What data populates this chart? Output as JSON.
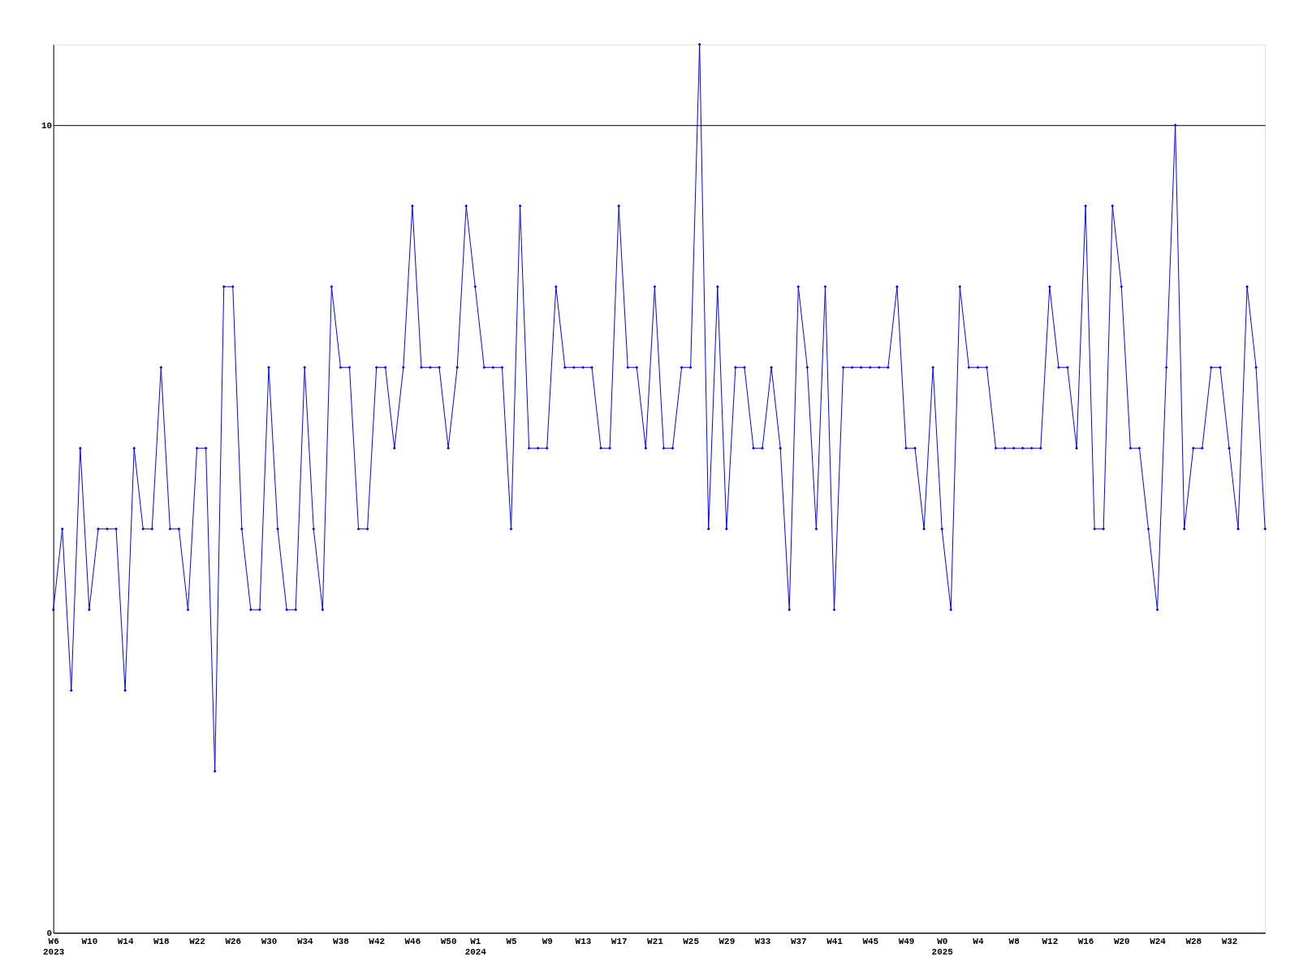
{
  "chart_data": {
    "type": "line",
    "categories": [
      "W6\n2023",
      null,
      null,
      null,
      "W10",
      null,
      null,
      null,
      "W14",
      null,
      null,
      null,
      "W18",
      null,
      null,
      null,
      "W22",
      null,
      null,
      null,
      "W26",
      null,
      null,
      null,
      "W30",
      null,
      null,
      null,
      "W34",
      null,
      null,
      null,
      "W38",
      null,
      null,
      null,
      "W42",
      null,
      null,
      null,
      "W46",
      null,
      null,
      null,
      "W50",
      null,
      null,
      "W1\n2024",
      null,
      null,
      null,
      "W5",
      null,
      null,
      null,
      "W9",
      null,
      null,
      null,
      "W13",
      null,
      null,
      null,
      "W17",
      null,
      null,
      null,
      "W21",
      null,
      null,
      null,
      "W25",
      null,
      null,
      null,
      "W29",
      null,
      null,
      null,
      "W33",
      null,
      null,
      null,
      "W37",
      null,
      null,
      null,
      "W41",
      null,
      null,
      null,
      "W45",
      null,
      null,
      null,
      "W49",
      null,
      null,
      null,
      "W0\n2025",
      null,
      null,
      null,
      "W4",
      null,
      null,
      null,
      "W8",
      null,
      null,
      null,
      "W12",
      null,
      null,
      null,
      "W16",
      null,
      null,
      null,
      "W20",
      null,
      null,
      null,
      "W24",
      null,
      null,
      null,
      "W28",
      null,
      null,
      null,
      "W32",
      null,
      null,
      null,
      null
    ],
    "series": [
      {
        "color": "#0000ff",
        "values": [
          4,
          5,
          3,
          6,
          4,
          5,
          5,
          5,
          3,
          6,
          5,
          5,
          7,
          5,
          5,
          4,
          6,
          6,
          2,
          8,
          8,
          5,
          4,
          4,
          7,
          5,
          4,
          4,
          7,
          5,
          4,
          8,
          7,
          7,
          5,
          5,
          7,
          7,
          6,
          7,
          9,
          7,
          7,
          7,
          6,
          7,
          9,
          8,
          7,
          7,
          7,
          5,
          9,
          6,
          6,
          6,
          8,
          7,
          7,
          7,
          7,
          6,
          6,
          9,
          7,
          7,
          6,
          8,
          6,
          6,
          7,
          7,
          11,
          5,
          8,
          5,
          7,
          7,
          6,
          6,
          7,
          6,
          4,
          8,
          7,
          5,
          8,
          4,
          7,
          7,
          7,
          7,
          7,
          7,
          8,
          6,
          6,
          5,
          7,
          5,
          4,
          8,
          7,
          7,
          7,
          6,
          6,
          6,
          6,
          6,
          6,
          8,
          7,
          7,
          6,
          9,
          5,
          5,
          9,
          8,
          6,
          6,
          5,
          4,
          7,
          10,
          5,
          6,
          6,
          7,
          7,
          6,
          5,
          8,
          7,
          5
        ]
      }
    ],
    "ylim": [
      0,
      11
    ],
    "yticks": [
      0,
      10
    ],
    "grid": "y",
    "marker": "diamond",
    "line_style": "solid"
  }
}
